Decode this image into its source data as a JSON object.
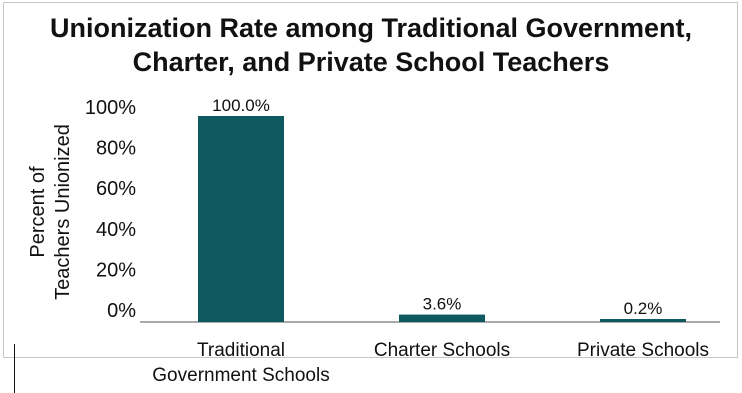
{
  "chart_data": {
    "type": "bar",
    "title_lines": [
      "Unionization Rate among Traditional Government,",
      "Charter, and Private School Teachers"
    ],
    "ylabel_lines": [
      "Percent of",
      "Teachers Unionized"
    ],
    "xlabel": "",
    "categories": [
      [
        "Traditional",
        "Government Schools"
      ],
      [
        "Charter Schools"
      ],
      [
        "Private Schools"
      ]
    ],
    "values": [
      100.0,
      3.6,
      0.2
    ],
    "data_labels": [
      "100.0%",
      "3.6%",
      "0.2%"
    ],
    "yticks": [
      "0%",
      "20%",
      "40%",
      "60%",
      "80%",
      "100%"
    ],
    "ytick_values": [
      0,
      20,
      40,
      60,
      80,
      100
    ],
    "ylim": [
      0,
      100
    ],
    "grid": false,
    "legend": "none",
    "bar_color": "#0e5a60"
  }
}
